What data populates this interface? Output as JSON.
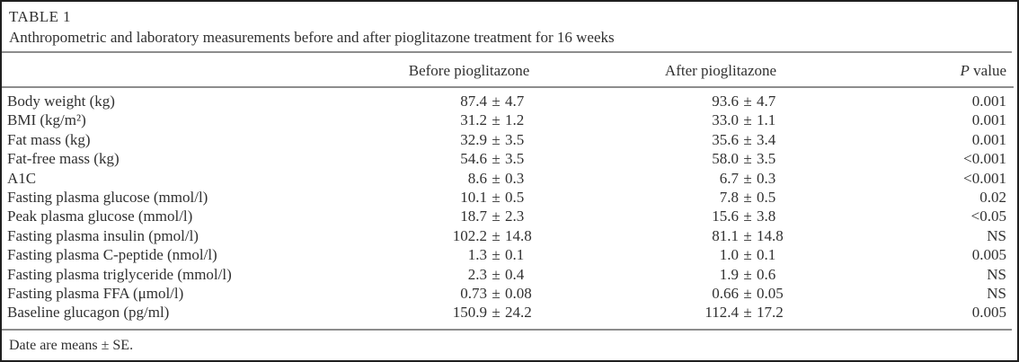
{
  "title": "TABLE 1",
  "caption": "Anthropometric and laboratory measurements before and after pioglitazone treatment for 16 weeks",
  "symbols": {
    "plus_minus": "±"
  },
  "columns": {
    "before": "Before pioglitazone",
    "after": "After pioglitazone",
    "p_italic": "P",
    "p_rest": "value"
  },
  "rows": [
    {
      "label": "Body weight (kg)",
      "before_mean": "87.4",
      "before_se": "4.7",
      "after_mean": "93.6",
      "after_se": "4.7",
      "p": "0.001"
    },
    {
      "label": "BMI (kg/m²)",
      "before_mean": "31.2",
      "before_se": "1.2",
      "after_mean": "33.0",
      "after_se": "1.1",
      "p": "0.001"
    },
    {
      "label": "Fat mass (kg)",
      "before_mean": "32.9",
      "before_se": "3.5",
      "after_mean": "35.6",
      "after_se": "3.4",
      "p": "0.001"
    },
    {
      "label": "Fat-free mass (kg)",
      "before_mean": "54.6",
      "before_se": "3.5",
      "after_mean": "58.0",
      "after_se": "3.5",
      "p": "<0.001"
    },
    {
      "label": "A1C",
      "before_mean": "8.6",
      "before_se": "0.3",
      "after_mean": "6.7",
      "after_se": "0.3",
      "p": "<0.001"
    },
    {
      "label": "Fasting plasma glucose (mmol/l)",
      "before_mean": "10.1",
      "before_se": "0.5",
      "after_mean": "7.8",
      "after_se": "0.5",
      "p": "0.02"
    },
    {
      "label": "Peak plasma glucose (mmol/l)",
      "before_mean": "18.7",
      "before_se": "2.3",
      "after_mean": "15.6",
      "after_se": "3.8",
      "p": "<0.05"
    },
    {
      "label": "Fasting plasma insulin (pmol/l)",
      "before_mean": "102.2",
      "before_se": "14.8",
      "after_mean": "81.1",
      "after_se": "14.8",
      "p": "NS"
    },
    {
      "label": "Fasting plasma C-peptide (nmol/l)",
      "before_mean": "1.3",
      "before_se": "0.1",
      "after_mean": "1.0",
      "after_se": "0.1",
      "p": "0.005"
    },
    {
      "label": "Fasting plasma triglyceride (mmol/l)",
      "before_mean": "2.3",
      "before_se": "0.4",
      "after_mean": "1.9",
      "after_se": "0.6",
      "p": "NS"
    },
    {
      "label": "Fasting plasma FFA (μmol/l)",
      "before_mean": "0.73",
      "before_se": "0.08",
      "after_mean": "0.66",
      "after_se": "0.05",
      "p": "NS"
    },
    {
      "label": "Baseline glucagon (pg/ml)",
      "before_mean": "150.9",
      "before_se": "24.2",
      "after_mean": "112.4",
      "after_se": "17.2",
      "p": "0.005"
    }
  ],
  "footnote": "Date are means ± SE.",
  "colors": {
    "text": "#303030",
    "rule": "#8d8d8d",
    "frame": "#1f1f1f",
    "background": "#ffffff"
  }
}
